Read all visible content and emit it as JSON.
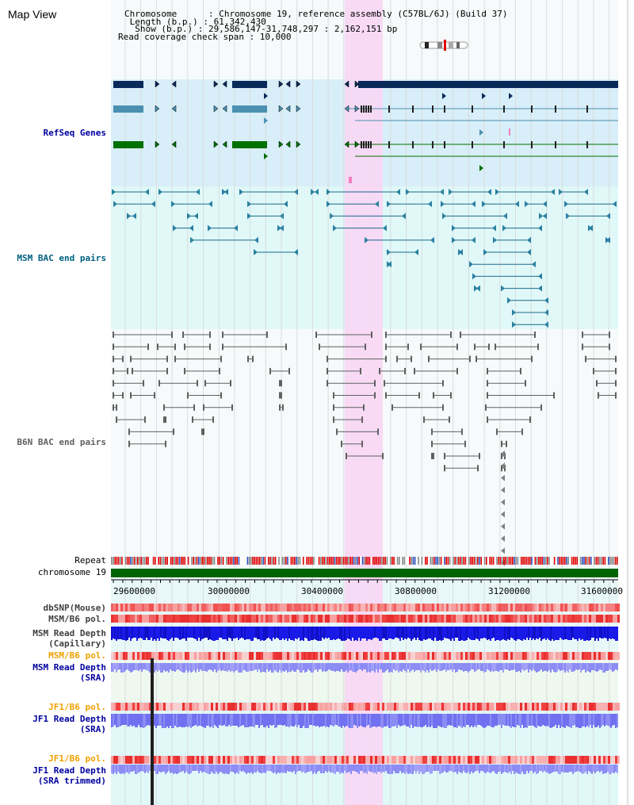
{
  "header": {
    "title": "Map View",
    "chromosome_label": "Chromosome      : Chromosome 19, reference assembly (C57BL/6J) (Build 37)",
    "length_label": " Length (b.p.) : 61,342,430",
    "show_label": "  Show (b.p.) : 29,586,147-31,748,297 : 2,162,151 bp",
    "coverage_label": "Read coverage check span : 10,000"
  },
  "tracks": {
    "refseq": "RefSeq Genes",
    "msm_bac": "MSM BAC end pairs",
    "b6n_bac": "B6N BAC end pairs",
    "repeat": "Repeat",
    "chromosome": "chromosome 19",
    "dbsnp": "dbSNP(Mouse)",
    "msm_b6_pol_1": "MSM/B6 pol.",
    "msm_read_depth_cap_1": "MSM Read Depth",
    "msm_read_depth_cap_2": "(Capillary)",
    "msm_b6_pol_2": "MSM/B6 pol.",
    "msm_read_depth_sra_1": "MSM Read Depth",
    "msm_read_depth_sra_2": "(SRA)",
    "jf1_b6_pol_1": "JF1/B6 pol.",
    "jf1_read_depth_sra_1": "JF1 Read Depth",
    "jf1_read_depth_sra_2": "(SRA)",
    "jf1_b6_pol_2": "JF1/B6 pol.",
    "jf1_read_depth_trim_1": "JF1 Read Depth",
    "jf1_read_depth_trim_2": "(SRA trimmed)"
  },
  "axis": {
    "ticks": [
      "29600000",
      "30000000",
      "30400000",
      "30800000",
      "31200000",
      "31600000"
    ]
  },
  "colors": {
    "highlight": "#f8d8f4",
    "refseq_bg": "#d8eef8",
    "msm_bg": "#e0f8f8",
    "dark_blue": "#0a2a5a",
    "teal_blue": "#4a90b0",
    "green": "#007000",
    "depth_blue": "#1a1ae8",
    "depth_light": "#8c8cf4",
    "pol_red": "#f04848",
    "pol_pink": "#f8b0b0",
    "orange_label": "#f0a000",
    "navy_label": "#0000a0",
    "teal_label": "#006080"
  }
}
